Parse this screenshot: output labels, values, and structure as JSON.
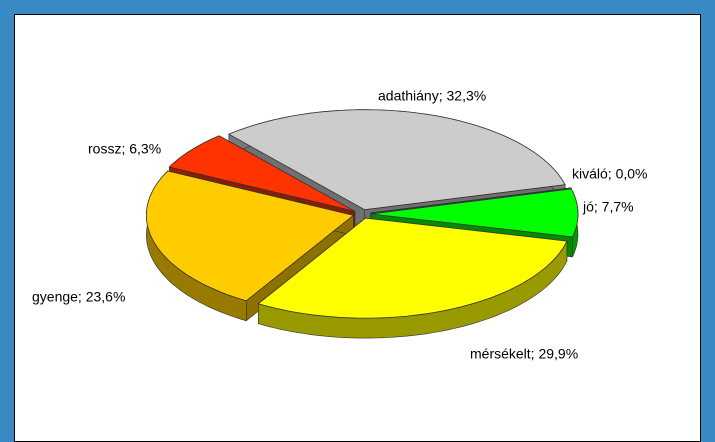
{
  "chart_data": {
    "type": "pie3d",
    "value_labels": [
      "adathiány; 32,3%",
      "kiváló; 0,0%",
      "jó; 7,7%",
      "mérsékelt; 29,9%",
      "gyenge; 23,6%",
      "rossz; 6,3%"
    ],
    "values": [
      32.3,
      0.0,
      7.7,
      29.9,
      23.6,
      6.3
    ],
    "colors": [
      "#cccccc",
      "#6666cc",
      "#00ff00",
      "#ffff00",
      "#ffcc00",
      "#ff3300"
    ]
  }
}
